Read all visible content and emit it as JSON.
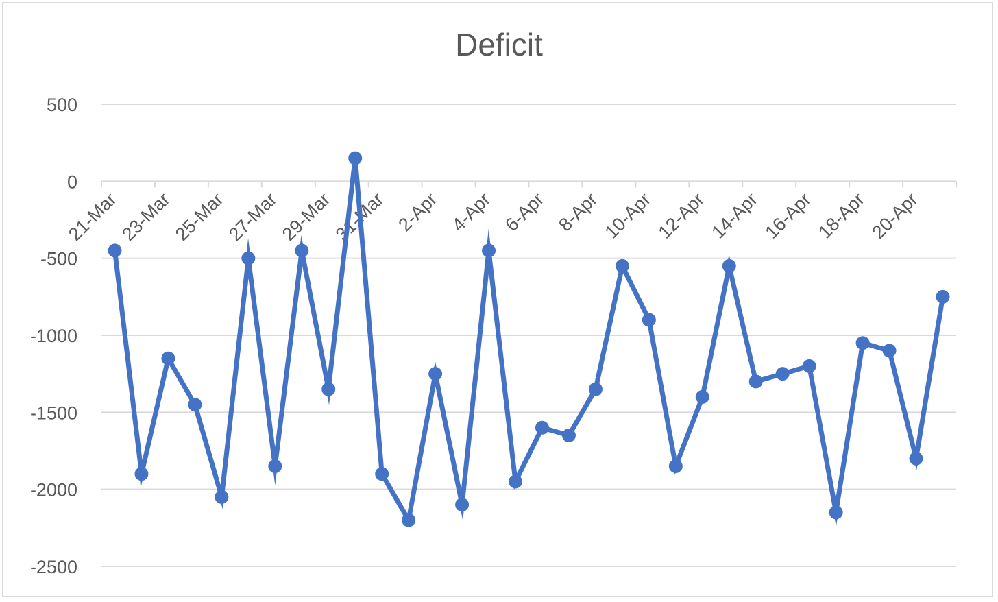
{
  "chart_data": {
    "type": "line",
    "title": "Deficit",
    "xlabel": "",
    "ylabel": "",
    "ylim": [
      -2500,
      500
    ],
    "yticks": [
      500,
      0,
      -500,
      -1000,
      -1500,
      -2000,
      -2500
    ],
    "xtick_labels": [
      "21-Mar",
      "23-Mar",
      "25-Mar",
      "27-Mar",
      "29-Mar",
      "31-Mar",
      "2-Apr",
      "4-Apr",
      "6-Apr",
      "8-Apr",
      "10-Apr",
      "12-Apr",
      "14-Apr",
      "16-Apr",
      "18-Apr",
      "20-Apr"
    ],
    "x": [
      "21-Mar",
      "22-Mar",
      "23-Mar",
      "24-Mar",
      "25-Mar",
      "26-Mar",
      "27-Mar",
      "28-Mar",
      "29-Mar",
      "30-Mar",
      "31-Mar",
      "1-Apr",
      "2-Apr",
      "3-Apr",
      "4-Apr",
      "5-Apr",
      "6-Apr",
      "7-Apr",
      "8-Apr",
      "9-Apr",
      "10-Apr",
      "11-Apr",
      "12-Apr",
      "13-Apr",
      "14-Apr",
      "15-Apr",
      "16-Apr",
      "17-Apr",
      "18-Apr",
      "19-Apr",
      "20-Apr",
      "21-Apr"
    ],
    "series": [
      {
        "values": [
          -450,
          -1900,
          -1150,
          -1450,
          -2050,
          -500,
          -1850,
          -450,
          -1350,
          150,
          -1900,
          -2200,
          -1250,
          -2100,
          -450,
          -1950,
          -1600,
          -1650,
          -1350,
          -550,
          -900,
          -1850,
          -1400,
          -550,
          -1300,
          -1250,
          -1200,
          -2150,
          -1050,
          -1100,
          -1800,
          -750
        ]
      }
    ],
    "grid": true,
    "legend": "none",
    "colors": {
      "line": "#4472c4",
      "grid": "#d9d9d9",
      "text": "#595959"
    }
  }
}
